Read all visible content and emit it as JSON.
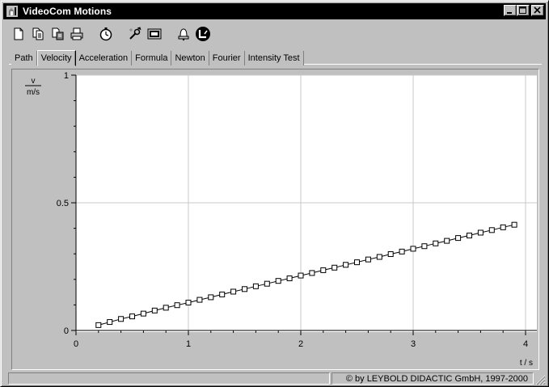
{
  "window": {
    "title": "VideoCom Motions"
  },
  "toolbar": {
    "icons": [
      "new-icon",
      "copy-icon",
      "paste-icon",
      "print-icon",
      "stopwatch-icon",
      "settings-icon",
      "display-icon",
      "bell-icon",
      "measure-icon"
    ]
  },
  "tabs": [
    {
      "label": "Path"
    },
    {
      "label": "Velocity",
      "active": true
    },
    {
      "label": "Acceleration"
    },
    {
      "label": "Formula"
    },
    {
      "label": "Newton"
    },
    {
      "label": "Fourier"
    },
    {
      "label": "Intensity Test"
    }
  ],
  "statusbar": {
    "left": "",
    "copyright": "© by LEYBOLD DIDACTIC GmbH, 1997-2000"
  },
  "chart_data": {
    "type": "line",
    "ylabel_top": "v",
    "ylabel_bottom": "m/s",
    "xlabel": "t / s",
    "xlim": [
      0,
      4
    ],
    "ylim": [
      0,
      1
    ],
    "x_ticks": [
      "0",
      "1",
      "2",
      "3",
      "4"
    ],
    "y_ticks": [
      {
        "value": 0,
        "label": "0"
      },
      {
        "value": 0.5,
        "label": "0.5"
      },
      {
        "value": 1,
        "label": "1"
      }
    ],
    "grid": true,
    "marker": "square",
    "series": [
      {
        "x": [
          0.2,
          0.3,
          0.4,
          0.5,
          0.6,
          0.7,
          0.8,
          0.9,
          1.0,
          1.1,
          1.2,
          1.3,
          1.4,
          1.5,
          1.6,
          1.7,
          1.8,
          1.9,
          2.0,
          2.1,
          2.2,
          2.3,
          2.4,
          2.5,
          2.6,
          2.7,
          2.8,
          2.9,
          3.0,
          3.1,
          3.2,
          3.3,
          3.4,
          3.5,
          3.6,
          3.7,
          3.8,
          3.9
        ],
        "y": [
          0.021,
          0.033,
          0.045,
          0.055,
          0.066,
          0.078,
          0.089,
          0.099,
          0.109,
          0.12,
          0.13,
          0.141,
          0.152,
          0.162,
          0.173,
          0.183,
          0.194,
          0.204,
          0.215,
          0.225,
          0.236,
          0.246,
          0.257,
          0.267,
          0.278,
          0.288,
          0.299,
          0.309,
          0.32,
          0.33,
          0.341,
          0.351,
          0.362,
          0.372,
          0.383,
          0.393,
          0.404,
          0.414
        ]
      }
    ]
  }
}
